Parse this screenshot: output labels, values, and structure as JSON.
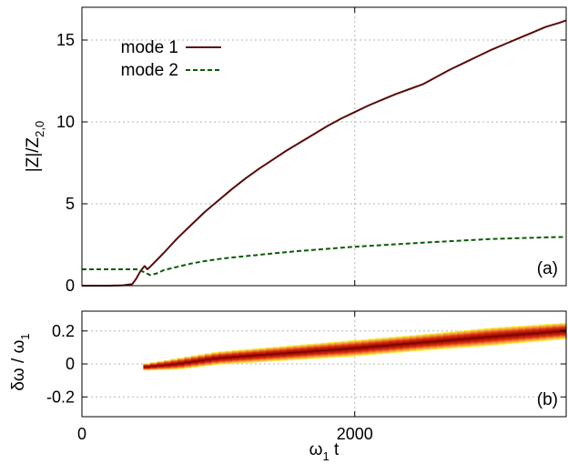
{
  "colors": {
    "mode1": "#5a0a0a",
    "mode2": "#0a5a0a",
    "heat_low": "#ffff40",
    "heat_mid": "#e03010",
    "heat_high": "#7a0000"
  },
  "chart_data": [
    {
      "type": "line",
      "panel_label": "(a)",
      "ylabel": "|Z|/Z",
      "ylabel_sub": "2,0",
      "xlim": [
        0,
        3550
      ],
      "ylim": [
        0,
        17
      ],
      "xticks": [
        0,
        2000
      ],
      "yticks": [
        0,
        5,
        10,
        15
      ],
      "grid": true,
      "legend_position": "top-left",
      "series": [
        {
          "name": "mode 1",
          "style": "solid",
          "x": [
            0,
            100,
            200,
            300,
            370,
            400,
            430,
            460,
            480,
            500,
            600,
            700,
            800,
            900,
            1000,
            1100,
            1200,
            1300,
            1400,
            1500,
            1600,
            1700,
            1800,
            1900,
            2000,
            2100,
            2200,
            2300,
            2400,
            2500,
            2600,
            2700,
            2800,
            2900,
            3000,
            3100,
            3200,
            3300,
            3400,
            3500,
            3550
          ],
          "y": [
            0.0,
            0.0,
            0.0,
            0.02,
            0.1,
            0.45,
            0.9,
            1.2,
            1.0,
            1.15,
            2.0,
            2.9,
            3.7,
            4.5,
            5.2,
            5.9,
            6.55,
            7.15,
            7.7,
            8.25,
            8.75,
            9.25,
            9.75,
            10.2,
            10.6,
            11.0,
            11.35,
            11.7,
            12.0,
            12.3,
            12.75,
            13.2,
            13.6,
            14.0,
            14.4,
            14.75,
            15.1,
            15.45,
            15.8,
            16.05,
            16.2
          ]
        },
        {
          "name": "mode 2",
          "style": "dashed",
          "x": [
            0,
            100,
            200,
            300,
            400,
            450,
            500,
            550,
            600,
            700,
            800,
            900,
            1000,
            1100,
            1200,
            1400,
            1600,
            1800,
            2000,
            2200,
            2400,
            2600,
            2800,
            3000,
            3200,
            3400,
            3550
          ],
          "y": [
            1.0,
            1.0,
            1.0,
            1.0,
            1.0,
            0.85,
            0.65,
            0.75,
            0.95,
            1.15,
            1.35,
            1.5,
            1.62,
            1.72,
            1.8,
            1.97,
            2.12,
            2.25,
            2.38,
            2.48,
            2.58,
            2.67,
            2.76,
            2.85,
            2.9,
            2.95,
            2.98
          ]
        }
      ]
    },
    {
      "type": "heatmap",
      "panel_label": "(b)",
      "ylabel": "δω / ω",
      "ylabel_sub": "1",
      "xlabel": "ω",
      "xlabel_sub": "1",
      "xlabel_suffix": " t",
      "xlim": [
        0,
        3550
      ],
      "ylim": [
        -0.32,
        0.32
      ],
      "xticks": [
        0,
        2000
      ],
      "yticks": [
        0.2,
        0,
        -0.2
      ],
      "grid": true,
      "ridge": {
        "x": [
          450,
          700,
          1000,
          1500,
          2000,
          2500,
          3000,
          3550
        ],
        "y": [
          -0.02,
          0.0,
          0.035,
          0.065,
          0.095,
          0.13,
          0.165,
          0.2
        ],
        "halfwidth": [
          0.02,
          0.035,
          0.04,
          0.045,
          0.05,
          0.05,
          0.055,
          0.05
        ]
      }
    }
  ]
}
